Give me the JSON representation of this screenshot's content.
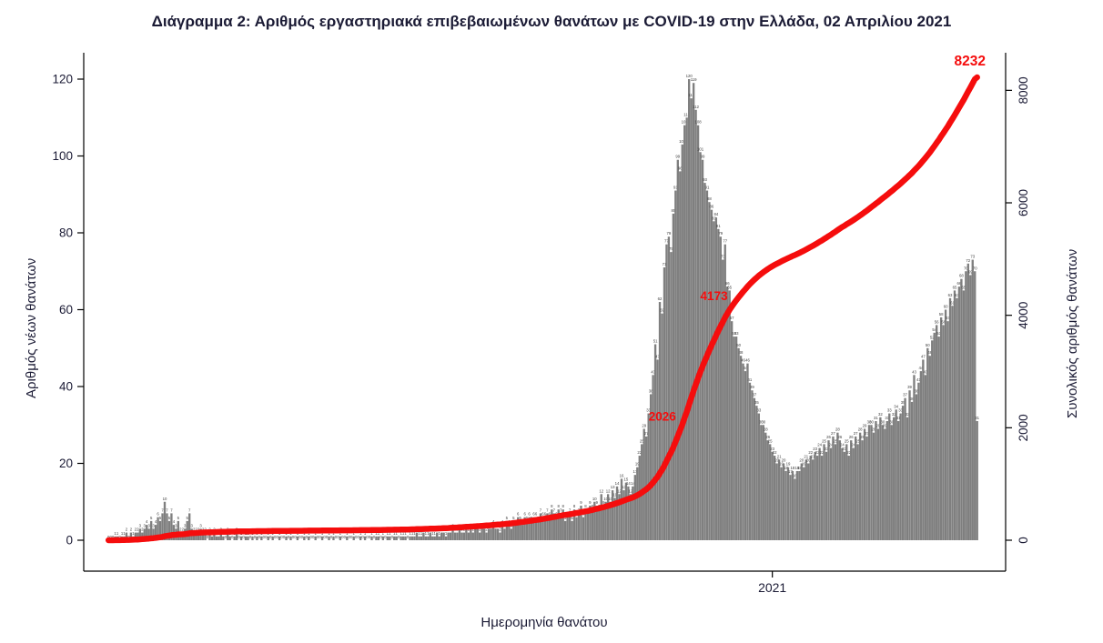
{
  "chart_data": {
    "type": "bar",
    "title": "Διάγραμμα 2: Αριθμός εργαστηριακά επιβεβαιωμένων θανάτων με COVID-19 στην Ελλάδα, 02 Απριλίου 2021",
    "xlabel": "Ημερομηνία θανάτου",
    "ylabel_left": "Αριθμός νέων θανάτων",
    "ylabel_right": "Συνολικός αριθμός θανάτων",
    "ylim_left": [
      0,
      120
    ],
    "ylim_right": [
      0,
      8232
    ],
    "left_axis_ticks": [
      0,
      20,
      40,
      60,
      80,
      100,
      120
    ],
    "right_axis_ticks": [
      0,
      2000,
      4000,
      6000,
      8000
    ],
    "x_axis": {
      "tick_label": "2021",
      "tick_day_index": 295,
      "n_days": 387
    },
    "bar_color": "#7f7f7f",
    "line_color": "#f50d0d",
    "text_color": "#1b1b35",
    "bar_label_color": "#3d3d3d",
    "grid": false,
    "legend": "none",
    "series": [
      {
        "name": "daily_deaths",
        "type": "bar",
        "values": [
          0,
          0,
          0,
          1,
          1,
          0,
          1,
          1,
          2,
          0,
          2,
          1,
          2,
          2,
          3,
          2,
          3,
          4,
          3,
          5,
          3,
          4,
          6,
          5,
          7,
          10,
          7,
          5,
          7,
          4,
          3,
          5,
          2,
          2,
          3,
          5,
          7,
          3,
          2,
          2,
          2,
          3,
          2,
          2,
          0,
          2,
          1,
          2,
          1,
          1,
          2,
          1,
          0,
          2,
          1,
          0,
          1,
          2,
          0,
          1,
          0,
          1,
          1,
          0,
          1,
          0,
          1,
          0,
          1,
          0,
          0,
          1,
          0,
          1,
          0,
          0,
          1,
          0,
          0,
          1,
          0,
          1,
          0,
          0,
          1,
          0,
          0,
          1,
          0,
          1,
          0,
          0,
          1,
          0,
          0,
          1,
          0,
          0,
          1,
          0,
          1,
          0,
          0,
          1,
          0,
          0,
          1,
          0,
          0,
          1,
          0,
          0,
          1,
          0,
          1,
          0,
          0,
          1,
          0,
          1,
          1,
          0,
          1,
          0,
          1,
          1,
          0,
          1,
          1,
          0,
          1,
          1,
          1,
          0,
          1,
          1,
          1,
          2,
          1,
          1,
          2,
          1,
          1,
          2,
          1,
          1,
          2,
          1,
          2,
          2,
          1,
          2,
          2,
          3,
          2,
          2,
          3,
          2,
          2,
          3,
          2,
          3,
          2,
          3,
          3,
          2,
          3,
          3,
          2,
          3,
          3,
          4,
          3,
          3,
          2,
          4,
          3,
          5,
          4,
          3,
          5,
          4,
          6,
          5,
          4,
          6,
          5,
          6,
          5,
          6,
          6,
          5,
          7,
          6,
          6,
          7,
          6,
          8,
          7,
          6,
          8,
          7,
          8,
          5,
          6,
          7,
          5,
          8,
          6,
          7,
          9,
          6,
          8,
          7,
          9,
          8,
          10,
          9,
          8,
          12,
          9,
          10,
          12,
          10,
          13,
          11,
          14,
          12,
          16,
          13,
          15,
          14,
          12,
          14,
          17,
          19,
          22,
          25,
          29,
          27,
          33,
          38,
          43,
          51,
          47,
          62,
          59,
          71,
          77,
          79,
          75,
          85,
          91,
          99,
          96,
          103,
          108,
          110,
          120,
          115,
          119,
          112,
          108,
          101,
          99,
          93,
          91,
          88,
          86,
          83,
          84,
          81,
          79,
          73,
          77,
          66,
          65,
          57,
          53,
          53,
          50,
          48,
          46,
          44,
          46,
          41,
          39,
          37,
          35,
          33,
          30,
          30,
          28,
          26,
          25,
          23,
          22,
          20,
          21,
          19,
          20,
          18,
          19,
          17,
          18,
          16,
          18,
          18,
          20,
          19,
          21,
          20,
          22,
          21,
          23,
          22,
          24,
          22,
          25,
          23,
          26,
          24,
          27,
          25,
          28,
          26,
          24,
          23,
          25,
          22,
          26,
          24,
          27,
          25,
          28,
          26,
          29,
          27,
          30,
          30,
          28,
          31,
          29,
          32,
          30,
          29,
          31,
          33,
          30,
          32,
          34,
          31,
          33,
          35,
          37,
          32,
          39,
          36,
          43,
          38,
          41,
          44,
          47,
          43,
          50,
          48,
          52,
          54,
          56,
          53,
          58,
          56,
          60,
          57,
          63,
          61,
          65,
          63,
          66,
          68,
          65,
          70,
          72,
          69,
          73,
          70,
          31
        ]
      },
      {
        "name": "cumulative_deaths",
        "type": "line",
        "final_value": 8232,
        "annotations": [
          {
            "value": 2026,
            "label": "2026"
          },
          {
            "value": 4173,
            "label": "4173"
          },
          {
            "value": 8232,
            "label": "8232"
          }
        ]
      }
    ]
  }
}
